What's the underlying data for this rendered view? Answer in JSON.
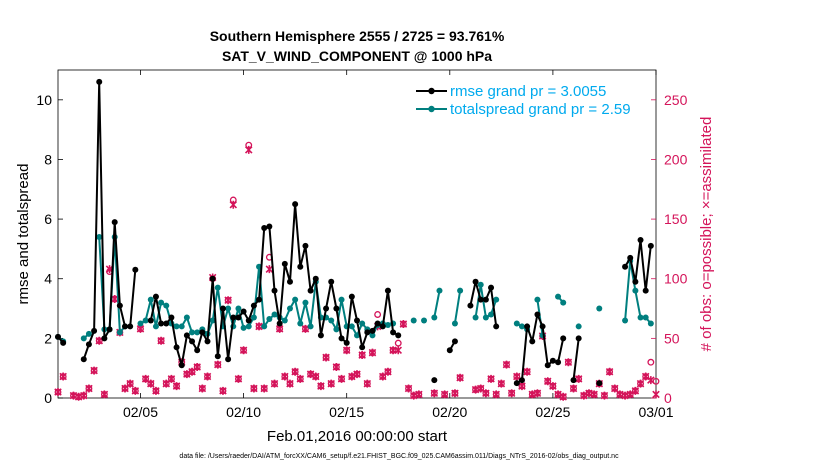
{
  "chart_data": {
    "type": "line",
    "title": "Southern Hemisphere 2555 / 2725 = 93.761%",
    "subtitle": "SAT_V_WIND_COMPONENT @ 1000 hPa",
    "xlabel": "Feb.01,2016 00:00:00 start",
    "ylabel": "rmse and totalspread",
    "ylabel_right": "# of obs: o=possible; ×=assimilated",
    "footnote": "data file: /Users/raeder/DAI/ATM_forcXX/CAM6_setup/f.e21.FHIST_BGC.f09_025.CAM6assim.011/Diags_NTrS_2016-02/obs_diag_output.nc",
    "x_range_days": [
      0,
      29
    ],
    "xtick_positions": [
      4,
      9,
      14,
      19,
      24,
      29
    ],
    "xtick_labels": [
      "02/05",
      "02/10",
      "02/15",
      "02/20",
      "02/25",
      "03/01"
    ],
    "ylim": [
      0,
      11
    ],
    "yticks": [
      0,
      2,
      4,
      6,
      8,
      10
    ],
    "ylim_right": [
      0,
      275
    ],
    "yticks_right": [
      0,
      50,
      100,
      150,
      200,
      250
    ],
    "grid": false,
    "legend_position": "top-right",
    "colors": {
      "rmse": "#000000",
      "spread": "#007f7f",
      "obs": "#d4145a",
      "legend_text": "#00aaee"
    },
    "series": [
      {
        "name": "rmse grand pr = 3.0055",
        "axis": "left",
        "x": [
          0,
          0.25,
          1.25,
          1.5,
          1.75,
          2,
          2.25,
          2.5,
          2.75,
          3,
          3.25,
          3.5,
          3.75,
          4.5,
          4.75,
          5,
          5.25,
          5.5,
          5.75,
          6,
          6.25,
          6.5,
          6.75,
          7,
          7.25,
          7.5,
          7.75,
          8,
          8.25,
          8.5,
          8.75,
          9,
          9.25,
          9.5,
          9.75,
          10,
          10.25,
          10.5,
          10.75,
          11,
          11.25,
          11.5,
          11.75,
          12,
          12.25,
          12.5,
          12.75,
          13,
          13.25,
          13.5,
          13.75,
          14,
          14.25,
          14.5,
          14.75,
          15,
          15.25,
          15.5,
          15.75,
          16,
          16.25,
          16.5,
          18.25,
          19,
          19.25,
          20,
          20.25,
          20.5,
          20.75,
          21,
          21.25,
          22.25,
          22.5,
          22.75,
          23,
          23.25,
          23.5,
          23.75,
          24,
          24.25,
          24.5,
          25,
          25.25,
          26.25,
          27.5,
          27.75,
          28,
          28.25,
          28.5,
          28.75
        ],
        "y": [
          2.05,
          1.85,
          1.3,
          1.8,
          2.25,
          10.6,
          2.0,
          2.3,
          5.9,
          3.1,
          2.4,
          2.4,
          4.3,
          2.6,
          3.4,
          2.5,
          2.5,
          2.7,
          1.7,
          1.1,
          2.1,
          1.9,
          1.6,
          2.2,
          1.9,
          4.0,
          1.4,
          3.0,
          1.3,
          2.7,
          2.7,
          2.9,
          2.6,
          3.1,
          3.3,
          5.7,
          5.75,
          3.6,
          2.5,
          4.5,
          3.9,
          6.5,
          4.4,
          5.1,
          3.6,
          4.0,
          2.1,
          3.0,
          3.9,
          3.0,
          2.0,
          1.85,
          3.4,
          2.6,
          1.7,
          2.2,
          2.25,
          2.5,
          2.4,
          3.6,
          2.2,
          2.1,
          0.6,
          1.6,
          1.9,
          3.1,
          3.9,
          3.3,
          3.3,
          3.7,
          2.4,
          0.5,
          0.6,
          2.4,
          1.9,
          2.8,
          2.4,
          1.1,
          1.25,
          1.2,
          2.0,
          0.6,
          2.0,
          0.5,
          4.4,
          4.7,
          3.9,
          5.3,
          3.6,
          5.1
        ]
      },
      {
        "name": "totalspread grand pr = 2.59",
        "axis": "left",
        "x": [
          0,
          0.25,
          1.25,
          1.5,
          2,
          2.25,
          2.5,
          2.75,
          3,
          3.25,
          4,
          4.25,
          4.5,
          4.75,
          5,
          5.25,
          5.5,
          5.75,
          6,
          6.25,
          6.5,
          6.75,
          7,
          7.25,
          7.5,
          7.75,
          8,
          8.25,
          8.5,
          8.75,
          9,
          9.25,
          9.5,
          9.75,
          10,
          10.25,
          10.5,
          10.75,
          11,
          11.25,
          11.5,
          11.75,
          12,
          12.25,
          12.5,
          12.75,
          13,
          13.25,
          13.5,
          13.75,
          14,
          14.25,
          14.5,
          14.75,
          15,
          15.25,
          15.5,
          15.75,
          16,
          16.25,
          17.25,
          17.75,
          18.25,
          18.5,
          19.25,
          19.5,
          20.25,
          20.5,
          20.75,
          21,
          21.25,
          22.25,
          22.5,
          22.75,
          23.25,
          23.5,
          24.25,
          24.5,
          25.25,
          26.25,
          27.5,
          27.75,
          28,
          28.25,
          28.5,
          28.75
        ],
        "y": [
          2.05,
          1.9,
          2.0,
          2.15,
          5.4,
          2.3,
          2.3,
          5.4,
          2.2,
          2.4,
          2.5,
          2.6,
          3.3,
          2.4,
          3.2,
          3.1,
          2.5,
          2.4,
          2.4,
          2.7,
          2.2,
          2.2,
          2.3,
          2.15,
          2.6,
          3.7,
          2.4,
          3.0,
          2.4,
          3.0,
          2.35,
          2.4,
          2.7,
          4.4,
          2.4,
          2.65,
          2.8,
          2.7,
          2.6,
          3.0,
          3.3,
          2.5,
          3.2,
          2.4,
          3.9,
          2.7,
          2.7,
          2.6,
          2.3,
          3.3,
          2.4,
          2.4,
          2.1,
          2.5,
          2.3,
          2.1,
          2.45,
          2.5,
          2.45,
          2.5,
          2.6,
          2.6,
          2.7,
          3.6,
          2.5,
          3.6,
          2.7,
          3.8,
          2.7,
          2.8,
          3.3,
          2.5,
          2.4,
          2.3,
          3.3,
          2.1,
          3.4,
          3.2,
          2.4,
          3.0,
          2.6,
          4.6,
          3.6,
          2.7,
          2.7,
          2.5
        ]
      },
      {
        "name": "possible",
        "axis": "right",
        "x": [
          0,
          0.25,
          0.75,
          1,
          1.25,
          1.5,
          1.75,
          2,
          2.25,
          2.5,
          2.75,
          3,
          3.25,
          3.5,
          3.75,
          4,
          4.25,
          4.5,
          4.75,
          5,
          5.25,
          5.5,
          5.75,
          6,
          6.25,
          6.5,
          6.75,
          7,
          7.25,
          7.5,
          7.75,
          8,
          8.25,
          8.5,
          8.75,
          9,
          9.25,
          9.5,
          9.75,
          10,
          10.25,
          10.5,
          10.75,
          11,
          11.25,
          11.5,
          11.75,
          12,
          12.25,
          12.5,
          12.75,
          13,
          13.25,
          13.5,
          13.75,
          14,
          14.25,
          14.5,
          14.75,
          15,
          15.25,
          15.5,
          15.75,
          16,
          16.25,
          16.5,
          16.75,
          17,
          17.25,
          17.5,
          18.25,
          18.75,
          19.25,
          19.5,
          20.25,
          20.5,
          20.75,
          21,
          21.25,
          21.5,
          21.75,
          22,
          22.25,
          22.5,
          22.75,
          23,
          23.25,
          23.5,
          23.75,
          24,
          24.25,
          24.5,
          24.75,
          25,
          25.25,
          25.5,
          25.75,
          26,
          26.25,
          26.5,
          26.75,
          27,
          27.25,
          27.5,
          27.75,
          28,
          28.25,
          28.5,
          28.75,
          29
        ],
        "y": [
          5,
          18,
          2,
          1,
          2,
          8,
          23,
          48,
          3,
          106,
          83,
          55,
          8,
          12,
          6,
          58,
          16,
          12,
          6,
          48,
          12,
          16,
          10,
          30,
          20,
          22,
          26,
          8,
          18,
          100,
          28,
          6,
          82,
          166,
          16,
          40,
          212,
          8,
          60,
          8,
          118,
          12,
          58,
          18,
          12,
          22,
          16,
          58,
          20,
          18,
          10,
          34,
          12,
          26,
          16,
          40,
          18,
          20,
          36,
          12,
          38,
          70,
          18,
          22,
          40,
          46,
          62,
          8,
          2,
          3,
          4,
          3,
          4,
          17,
          7,
          8,
          4,
          16,
          3,
          12,
          28,
          4,
          18,
          10,
          22,
          3,
          4,
          52,
          14,
          10,
          3,
          1,
          30,
          8,
          16,
          2,
          4,
          3,
          12,
          2,
          22,
          8,
          3,
          2,
          3,
          6,
          12,
          18,
          30,
          14
        ]
      },
      {
        "name": "assimilated",
        "axis": "right",
        "x": [
          0,
          0.25,
          0.75,
          1,
          1.25,
          1.5,
          1.75,
          2,
          2.25,
          2.5,
          2.75,
          3,
          3.25,
          3.5,
          3.75,
          4,
          4.25,
          4.5,
          4.75,
          5,
          5.25,
          5.5,
          5.75,
          6,
          6.25,
          6.5,
          6.75,
          7,
          7.25,
          7.5,
          7.75,
          8,
          8.25,
          8.5,
          8.75,
          9,
          9.25,
          9.5,
          9.75,
          10,
          10.25,
          10.5,
          10.75,
          11,
          11.25,
          11.5,
          11.75,
          12,
          12.25,
          12.5,
          12.75,
          13,
          13.25,
          13.5,
          13.75,
          14,
          14.25,
          14.5,
          14.75,
          15,
          15.25,
          15.5,
          15.75,
          16,
          16.25,
          16.5,
          16.75,
          17,
          17.25,
          17.5,
          18.25,
          18.75,
          19.25,
          19.5,
          20.25,
          20.5,
          20.75,
          21,
          21.25,
          21.5,
          21.75,
          22,
          22.25,
          22.5,
          22.75,
          23,
          23.25,
          23.5,
          23.75,
          24,
          24.25,
          24.5,
          24.75,
          25,
          25.25,
          25.5,
          25.75,
          26,
          26.25,
          26.5,
          26.75,
          27,
          27.25,
          27.5,
          27.75,
          28,
          28.25,
          28.5,
          28.75,
          29
        ],
        "y": [
          5,
          18,
          2,
          1,
          2,
          8,
          23,
          48,
          3,
          108,
          83,
          55,
          8,
          12,
          6,
          58,
          16,
          12,
          6,
          48,
          12,
          16,
          10,
          30,
          20,
          22,
          26,
          8,
          18,
          101,
          28,
          6,
          82,
          162,
          16,
          40,
          208,
          8,
          60,
          8,
          108,
          12,
          58,
          18,
          12,
          22,
          16,
          58,
          20,
          18,
          10,
          34,
          12,
          26,
          16,
          40,
          18,
          20,
          36,
          12,
          38,
          60,
          18,
          22,
          40,
          40,
          62,
          8,
          2,
          3,
          4,
          3,
          4,
          17,
          7,
          8,
          4,
          16,
          3,
          12,
          28,
          4,
          18,
          10,
          22,
          3,
          4,
          52,
          14,
          10,
          3,
          1,
          30,
          8,
          16,
          2,
          4,
          3,
          12,
          2,
          22,
          8,
          3,
          2,
          3,
          6,
          12,
          18,
          15,
          3
        ]
      }
    ]
  }
}
